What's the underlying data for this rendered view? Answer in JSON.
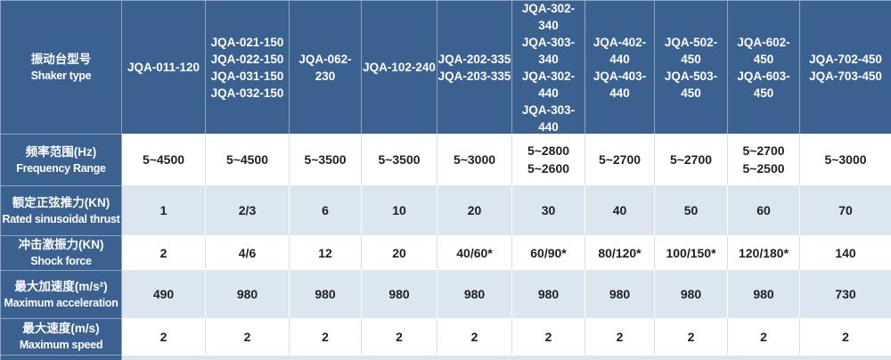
{
  "colors": {
    "header_bg": "#3B6191",
    "header_line": "#8FA6BF",
    "row_alt": "#DCE6F1",
    "row_white": "#FFFFFF",
    "grid_light": "#DADDE2",
    "grid_on_alt": "#FFFFFF",
    "text_dark": "#1F1F1F",
    "text_light": "#FFFFFF"
  },
  "table": {
    "header": {
      "label_zh": "振动台型号",
      "label_en": "Shaker type",
      "columns": [
        "JQA-011-120",
        "JQA-021-150\nJQA-022-150\nJQA-031-150\nJQA-032-150",
        "JQA-062-230",
        "JQA-102-240",
        "JQA-202-335\nJQA-203-335",
        "JQA-302-340\nJQA-303-340\nJQA-302-440\nJQA-303-440",
        "JQA-402-440\nJQA-403-440",
        "JQA-502-450\nJQA-503-450",
        "JQA-602-450\nJQA-603-450",
        "JQA-702-450\nJQA-703-450"
      ]
    },
    "rows": [
      {
        "label_zh": "频率范围(Hz)",
        "label_en": "Frequency Range",
        "values": [
          "5~4500",
          "5~4500",
          "5~3500",
          "5~3500",
          "5~3000",
          "5~2800\n5~2600",
          "5~2700",
          "5~2700",
          "5~2700\n5~2500",
          "5~3000"
        ]
      },
      {
        "label_zh": "额定正弦推力(KN)",
        "label_en": "Rated sinusoidal thrust",
        "values": [
          "1",
          "2/3",
          "6",
          "10",
          "20",
          "30",
          "40",
          "50",
          "60",
          "70"
        ]
      },
      {
        "label_zh": "冲击激振力(KN)",
        "label_en": "Shock force",
        "values": [
          "2",
          "4/6",
          "12",
          "20",
          "40/60*",
          "60/90*",
          "80/120*",
          "100/150*",
          "120/180*",
          "140"
        ]
      },
      {
        "label_zh": "最大加速度(m/s²)",
        "label_en": "Maximum acceleration",
        "values": [
          "490",
          "980",
          "980",
          "980",
          "980",
          "980",
          "980",
          "980",
          "980",
          "730"
        ]
      },
      {
        "label_zh": "最大速度(m/s)",
        "label_en": "Maximum speed",
        "values": [
          "2",
          "2",
          "2",
          "2",
          "2",
          "2",
          "2",
          "2",
          "2",
          "2"
        ]
      }
    ]
  }
}
